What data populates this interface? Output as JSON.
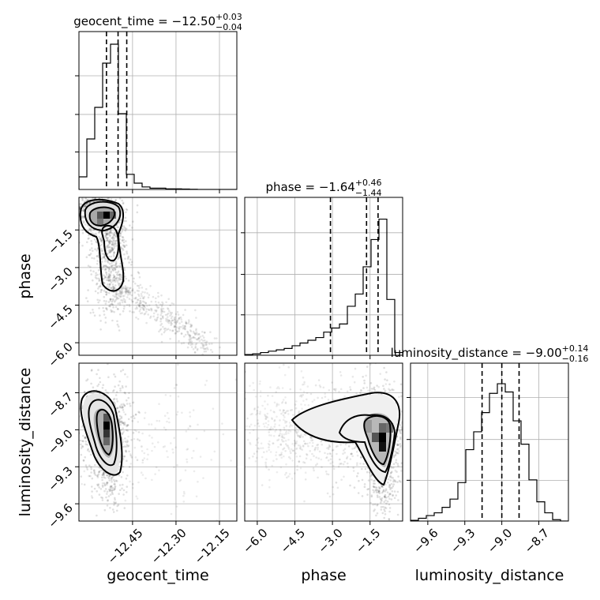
{
  "chart_data": {
    "type": "corner",
    "parameters": [
      "geocent_time",
      "phase",
      "luminosity_distance"
    ],
    "titles": [
      {
        "name": "geocent_time",
        "median": "−12.50",
        "plus": "+0.03",
        "minus": "−0.04"
      },
      {
        "name": "phase",
        "median": "−1.64",
        "plus": "+0.46",
        "minus": "−1.44"
      },
      {
        "name": "luminosity_distance",
        "median": "−9.00",
        "plus": "+0.14",
        "minus": "−0.16"
      }
    ],
    "ranges": {
      "geocent_time": [
        -12.635,
        -12.09
      ],
      "phase": [
        -6.5,
        -0.2
      ],
      "luminosity_distance": [
        -9.74,
        -8.46
      ]
    },
    "ticks": {
      "geocent_time": [
        -12.45,
        -12.3,
        -12.15
      ],
      "phase": [
        -6.0,
        -4.5,
        -3.0,
        -1.5
      ],
      "luminosity_distance": [
        -9.6,
        -9.3,
        -9.0,
        -8.7
      ]
    },
    "tick_labels": {
      "geocent_time": [
        "−12.45",
        "−12.30",
        "−12.15"
      ],
      "phase": [
        "−6.0",
        "−4.5",
        "−3.0",
        "−1.5"
      ],
      "luminosity_distance": [
        "−9.6",
        "−9.3",
        "−9.0",
        "−8.7"
      ]
    },
    "quantiles": {
      "geocent_time": [
        -12.54,
        -12.5,
        -12.47
      ],
      "phase": [
        -3.08,
        -1.64,
        -1.18
      ],
      "luminosity_distance": [
        -9.16,
        -9.0,
        -8.86
      ]
    },
    "marginal_histograms": {
      "geocent_time": {
        "edges": [
          -12.635,
          -12.6077,
          -12.5805,
          -12.5532,
          -12.526,
          -12.4988,
          -12.4715,
          -12.4443,
          -12.417,
          -12.3898,
          -12.3625,
          -12.3353,
          -12.308,
          -12.2808,
          -12.2535,
          -12.2263,
          -12.199,
          -12.1718,
          -12.1445,
          -12.1173,
          -12.09
        ],
        "counts": [
          0.1,
          0.4,
          0.65,
          1.0,
          1.15,
          0.6,
          0.12,
          0.05,
          0.02,
          0.01,
          0.01,
          0.005,
          0.005,
          0.003,
          0.002,
          0.0,
          0.0,
          0.0,
          0.0,
          0.0
        ]
      },
      "phase": {
        "edges": [
          -6.5,
          -6.185,
          -5.87,
          -5.555,
          -5.24,
          -4.925,
          -4.61,
          -4.295,
          -3.98,
          -3.665,
          -3.35,
          -3.035,
          -2.72,
          -2.405,
          -2.09,
          -1.775,
          -1.46,
          -1.145,
          -0.83,
          -0.515,
          -0.2
        ],
        "counts": [
          0.005,
          0.01,
          0.02,
          0.03,
          0.04,
          0.05,
          0.07,
          0.09,
          0.11,
          0.13,
          0.17,
          0.2,
          0.23,
          0.36,
          0.45,
          0.65,
          0.85,
          1.0,
          0.41,
          0.02
        ]
      },
      "luminosity_distance": {
        "edges": [
          -9.74,
          -9.676,
          -9.612,
          -9.548,
          -9.484,
          -9.42,
          -9.356,
          -9.292,
          -9.228,
          -9.164,
          -9.1,
          -9.036,
          -8.972,
          -8.908,
          -8.844,
          -8.78,
          -8.716,
          -8.652,
          -8.588,
          -8.524,
          -8.46
        ],
        "counts": [
          0.005,
          0.02,
          0.04,
          0.06,
          0.1,
          0.16,
          0.28,
          0.52,
          0.65,
          0.79,
          0.93,
          1.0,
          0.94,
          0.73,
          0.56,
          0.3,
          0.14,
          0.06,
          0.01,
          0.0
        ]
      }
    },
    "hist_ylim": {
      "geocent_time": [
        0,
        1.25
      ],
      "phase": [
        0,
        1.16
      ],
      "luminosity_distance": [
        0,
        1.15
      ]
    },
    "density_peaks": [
      {
        "x": "geocent_time",
        "y": "phase",
        "center": [
          -12.51,
          -1.35
        ]
      },
      {
        "x": "geocent_time",
        "y": "luminosity_distance",
        "center": [
          -12.51,
          -9.0
        ]
      },
      {
        "x": "phase",
        "y": "luminosity_distance",
        "center": [
          -1.3,
          -9.08
        ]
      }
    ],
    "grid": true
  }
}
